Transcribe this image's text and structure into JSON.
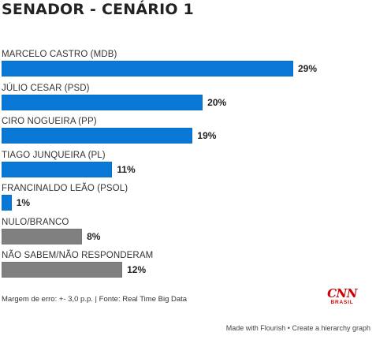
{
  "title": "SENADOR - CENÁRIO 1",
  "chart_data": {
    "type": "bar",
    "orientation": "horizontal",
    "categories": [
      "MARCELO CASTRO (MDB)",
      "JÚLIO CESAR (PSD)",
      "CIRO NOGUEIRA (PP)",
      "TIAGO JUNQUEIRA (PL)",
      "FRANCINALDO LEÃO (PSOL)",
      "NULO/BRANCO",
      "NÃO SABEM/NÃO RESPONDERAM"
    ],
    "values": [
      29,
      20,
      19,
      11,
      1,
      8,
      12
    ],
    "value_labels": [
      "29%",
      "20%",
      "19%",
      "11%",
      "1%",
      "8%",
      "12%"
    ],
    "colors": [
      "#0a78d7",
      "#0a78d7",
      "#0a78d7",
      "#0a78d7",
      "#0a78d7",
      "#808080",
      "#808080"
    ],
    "xlim": [
      0,
      29
    ]
  },
  "footnote": "Margem de erro: +- 3,0 p.p. | Fonte: Real Time Big Data",
  "logo": {
    "name": "cnn-brasil-logo",
    "text": "CNN",
    "sub": "BRASIL",
    "color": "#cc0000"
  },
  "attribution": "Made with Flourish • Create a hierarchy graph"
}
